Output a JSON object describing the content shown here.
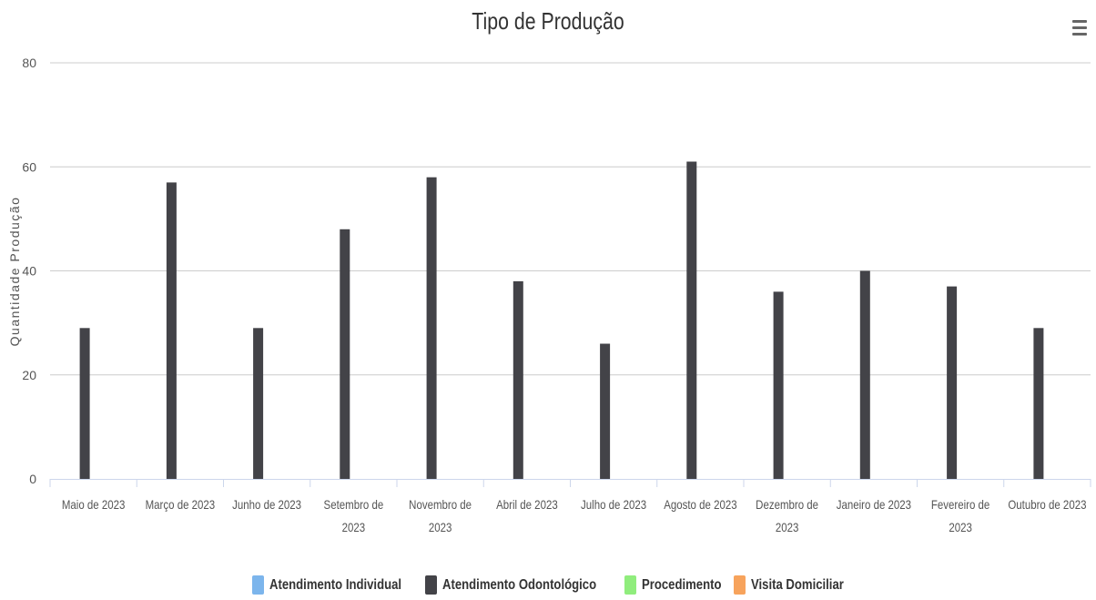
{
  "chart_data": {
    "type": "bar",
    "title": "Tipo de Produção",
    "ylabel": "Quantidade Produção",
    "xlabel": "",
    "ylim": [
      0,
      80
    ],
    "yticks": [
      0,
      20,
      40,
      60,
      80
    ],
    "grid": true,
    "legend_position": "bottom",
    "categories": [
      "Maio de 2023",
      "Março de 2023",
      "Junho de 2023",
      "Setembro de 2023",
      "Novembro de 2023",
      "Abril de 2023",
      "Julho de 2023",
      "Agosto de 2023",
      "Dezembro de 2023",
      "Janeiro de 2023",
      "Fevereiro de 2023",
      "Outubro de 2023"
    ],
    "series": [
      {
        "name": "Atendimento Individual",
        "color": "#7cb5ec",
        "values": [
          0,
          0,
          0,
          0,
          0,
          0,
          0,
          0,
          0,
          0,
          0,
          0
        ]
      },
      {
        "name": "Atendimento Odontológico",
        "color": "#434348",
        "values": [
          29,
          57,
          29,
          48,
          58,
          38,
          26,
          61,
          36,
          40,
          37,
          29
        ]
      },
      {
        "name": "Procedimento",
        "color": "#90ed7d",
        "values": [
          0,
          0,
          0,
          0,
          0,
          0,
          0,
          0,
          0,
          0,
          0,
          0
        ]
      },
      {
        "name": "Visita Domiciliar",
        "color": "#f7a35c",
        "values": [
          0,
          0,
          0,
          0,
          0,
          0,
          0,
          0,
          0,
          0,
          0,
          0
        ]
      }
    ]
  },
  "menu_icon": "hamburger-menu-icon"
}
